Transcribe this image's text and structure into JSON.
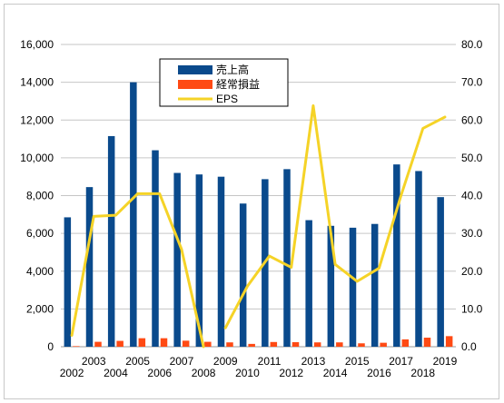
{
  "chart_data": {
    "type": "bar",
    "categories": [
      "2002",
      "2003",
      "2004",
      "2005",
      "2006",
      "2007",
      "2008",
      "2009",
      "2010",
      "2011",
      "2012",
      "2013",
      "2014",
      "2015",
      "2016",
      "2017",
      "2018",
      "2019"
    ],
    "series": [
      {
        "name": "売上高",
        "axis": "left",
        "type": "bar",
        "color": "#0a4a8c",
        "values": [
          6850,
          8450,
          11150,
          14000,
          10400,
          9200,
          9120,
          9000,
          7580,
          8870,
          9400,
          6700,
          6400,
          6300,
          6500,
          9650,
          9300,
          7920
        ]
      },
      {
        "name": "経常損益",
        "axis": "left",
        "type": "bar",
        "color": "#ff4a14",
        "values": [
          30,
          260,
          310,
          450,
          450,
          320,
          260,
          230,
          150,
          250,
          240,
          230,
          230,
          180,
          210,
          390,
          480,
          560
        ]
      },
      {
        "name": "EPS",
        "axis": "right",
        "type": "line",
        "color": "#f5d327",
        "values": [
          3.0,
          34.5,
          34.8,
          40.5,
          40.5,
          25.8,
          null,
          5.0,
          16.0,
          24.0,
          21.0,
          63.8,
          21.8,
          17.3,
          20.8,
          40.0,
          57.8,
          60.8
        ]
      }
    ],
    "y_left": {
      "min": 0,
      "max": 16000,
      "ticks": [
        "0",
        "2,000",
        "4,000",
        "6,000",
        "8,000",
        "10,000",
        "12,000",
        "14,000",
        "16,000"
      ]
    },
    "y_right": {
      "min": 0,
      "max": 80,
      "ticks": [
        "0.0",
        "10.0",
        "20.0",
        "30.0",
        "40.0",
        "50.0",
        "60.0",
        "70.0",
        "80.0"
      ]
    },
    "legend": {
      "position": "top-center"
    },
    "grid": true
  }
}
